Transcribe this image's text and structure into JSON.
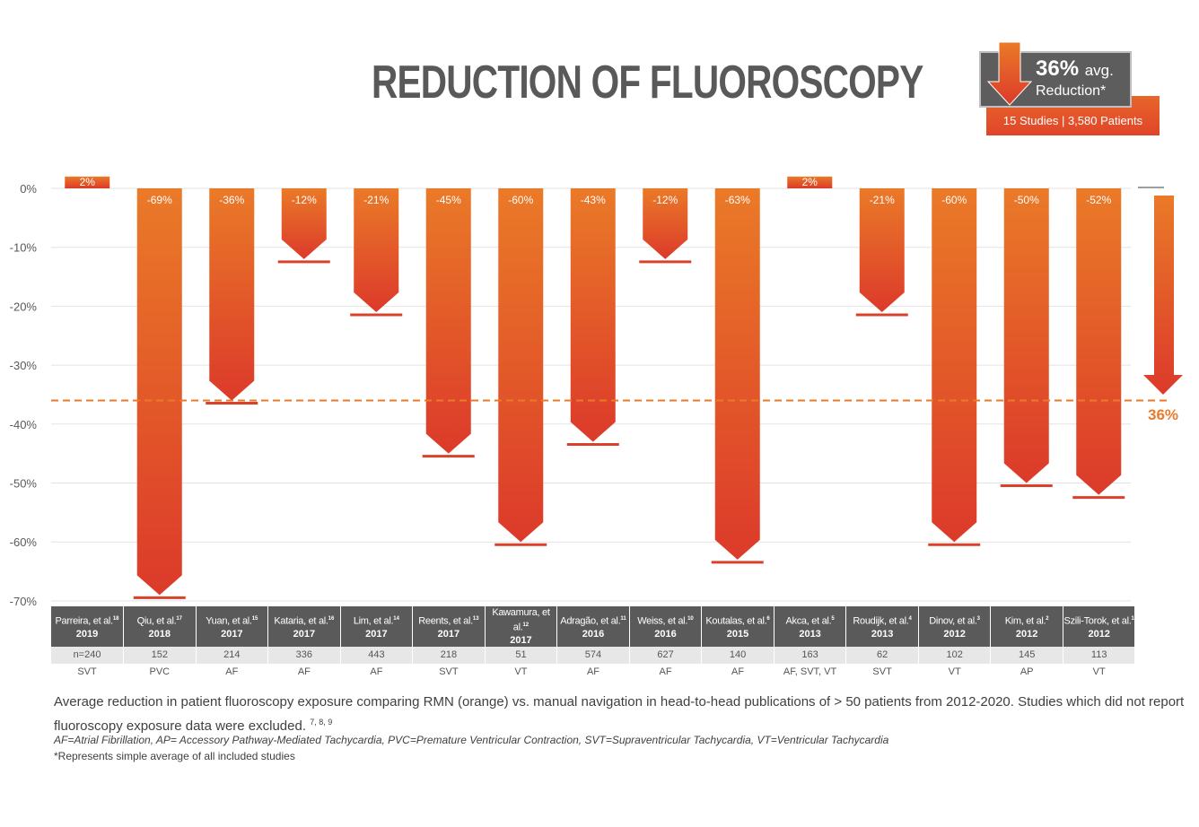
{
  "header": {
    "title": "REDUCTION OF FLUOROSCOPY"
  },
  "badge": {
    "pct": "36%",
    "avg": "avg.",
    "reduction": "Reduction*",
    "studies": "15 Studies  |  3,580 Patients"
  },
  "colors": {
    "bar_top": "#ea7a28",
    "bar_bottom": "#dc3a2a",
    "badge_gray": "#5d5d5d",
    "accent": "#ea7a28"
  },
  "chart_data": {
    "type": "bar",
    "categories": [
      "Parreira, et al.18 2019",
      "Qiu, et al.17 2018",
      "Yuan, et al.15 2017",
      "Kataria, et al.16 2017",
      "Lim, et al. 14 2017",
      "Reents, et al.13 2017",
      "Kawamura, et al.12 2017",
      "Adragão, et al.11 2016",
      "Weiss, et al.10 2016",
      "Koutalas, et al.6 2015",
      "Akca, et al.5 2013",
      "Roudijk, et al.4 2013",
      "Dinov, et al.3 2012",
      "Kim, et al.2 2012",
      "Szili-Torok, et al.1 2012"
    ],
    "values": [
      2,
      -69,
      -36,
      -12,
      -21,
      -45,
      -60,
      -43,
      -12,
      -63,
      2,
      -21,
      -60,
      -50,
      -52
    ],
    "value_labels": [
      "2%",
      "-69%",
      "-36%",
      "-12%",
      "-21%",
      "-45%",
      "-60%",
      "-43%",
      "-12%",
      "-63%",
      "2%",
      "-21%",
      "-60%",
      "-50%",
      "-52%"
    ],
    "average": -36,
    "average_label": "36%",
    "yticks": [
      0,
      -10,
      -20,
      -30,
      -40,
      -50,
      -60,
      -70
    ],
    "ytick_labels": [
      "0%",
      "-10%",
      "-20%",
      "-30%",
      "-40%",
      "-50%",
      "-60%",
      "-70%"
    ],
    "ylim": [
      -70,
      3
    ],
    "grid": true,
    "title": "REDUCTION OF FLUOROSCOPY"
  },
  "table": {
    "studies": [
      {
        "name": "Parreira, et al.",
        "ref": "18",
        "year": "2019",
        "n": "n=240",
        "type": "SVT"
      },
      {
        "name": "Qiu, et al.",
        "ref": "17",
        "year": "2018",
        "n": "152",
        "type": "PVC"
      },
      {
        "name": "Yuan, et al.",
        "ref": "15",
        "year": "2017",
        "n": "214",
        "type": "AF"
      },
      {
        "name": "Kataria, et al.",
        "ref": "16",
        "year": "2017",
        "n": "336",
        "type": "AF"
      },
      {
        "name": "Lim, et al.",
        "ref": "14",
        "year": "2017",
        "n": "443",
        "type": "AF"
      },
      {
        "name": "Reents, et al.",
        "ref": "13",
        "year": "2017",
        "n": "218",
        "type": "SVT"
      },
      {
        "name": "Kawamura, et al.",
        "ref": "12",
        "year": "2017",
        "n": "51",
        "type": "VT"
      },
      {
        "name": "Adragão, et al.",
        "ref": "11",
        "year": "2016",
        "n": "574",
        "type": "AF"
      },
      {
        "name": "Weiss, et al.",
        "ref": "10",
        "year": "2016",
        "n": "627",
        "type": "AF"
      },
      {
        "name": "Koutalas, et al.",
        "ref": "6",
        "year": "2015",
        "n": "140",
        "type": "AF"
      },
      {
        "name": "Akca, et al.",
        "ref": "5",
        "year": "2013",
        "n": "163",
        "type": "AF, SVT, VT"
      },
      {
        "name": "Roudijk, et al.",
        "ref": "4",
        "year": "2013",
        "n": "62",
        "type": "SVT"
      },
      {
        "name": "Dinov, et al.",
        "ref": "3",
        "year": "2012",
        "n": "102",
        "type": "VT"
      },
      {
        "name": "Kim, et al.",
        "ref": "2",
        "year": "2012",
        "n": "145",
        "type": "AP"
      },
      {
        "name": "Szili-Torok, et al.",
        "ref": "1",
        "year": "2012",
        "n": "113",
        "type": "VT"
      }
    ]
  },
  "caption": {
    "line1": "Average reduction in patient fluoroscopy exposure comparing RMN (orange) vs. manual navigation in head-to-head publications of > 50 patients from 2012-2020. Studies which did not report fluoroscopy exposure data were excluded.",
    "line1_refs": "7, 8, 9",
    "abbrev": "AF=Atrial Fibrillation, AP= Accessory Pathway-Mediated Tachycardia, PVC=Premature Ventricular Contraction, SVT=Supraventricular Tachycardia, VT=Ventricular Tachycardia",
    "note": "*Represents simple average of all included studies"
  }
}
